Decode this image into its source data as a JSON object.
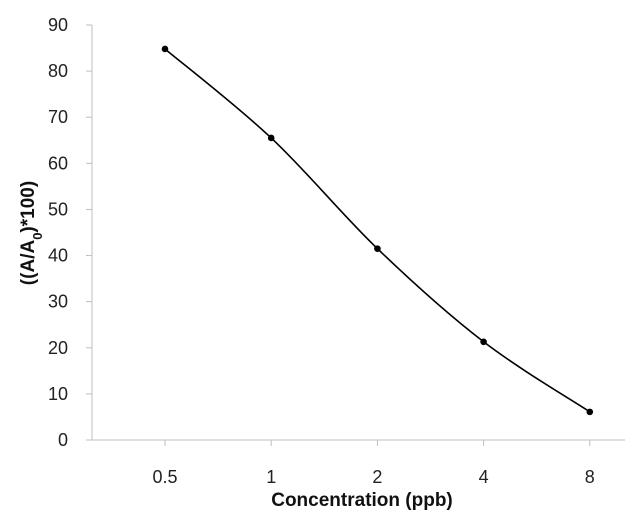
{
  "chart_data": {
    "type": "line",
    "categories": [
      "0.5",
      "1",
      "2",
      "4",
      "8"
    ],
    "series": [
      {
        "values": [
          84.8,
          65.5,
          41.5,
          21.3,
          6.1
        ],
        "color": "#000000"
      }
    ],
    "xlabel": "Concentration (ppb)",
    "ylabel": {
      "prefix": "((A/A",
      "subscript": "0",
      "suffix": ")*100)"
    },
    "ylim": [
      0,
      90
    ],
    "yticks": [
      0,
      10,
      20,
      30,
      40,
      50,
      60,
      70,
      80,
      90
    ],
    "grid": false,
    "smooth": true,
    "markers": true
  }
}
